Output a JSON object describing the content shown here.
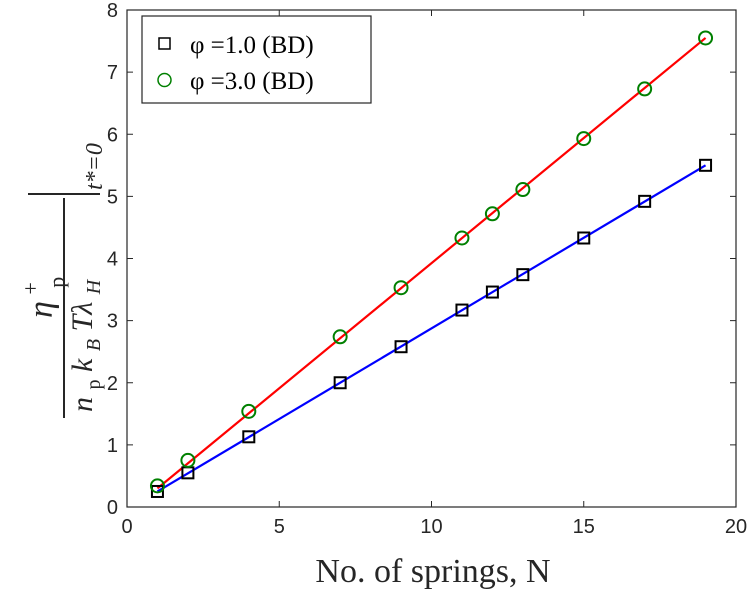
{
  "chart_data": {
    "type": "scatter",
    "xlabel": "No. of springs, N",
    "ylabel": {
      "numerator": "η",
      "numerator_sup": "+",
      "numerator_sub": "p",
      "denominator": "n",
      "denominator_sub": "p",
      "denominator_rest": "k",
      "denominator_rest_sub": "B",
      "denominator_tail": "Tλ",
      "denominator_tail_sub": "H",
      "evaluation": "t*=0"
    },
    "xlim": [
      0,
      20
    ],
    "ylim": [
      0,
      8
    ],
    "xticks": [
      0,
      5,
      10,
      15,
      20
    ],
    "yticks": [
      0,
      1,
      2,
      3,
      4,
      5,
      6,
      7,
      8
    ],
    "grid": false,
    "legend_position": "top-left",
    "series": [
      {
        "name": "φ =1.0 (BD)",
        "marker": "square",
        "color": "#000000",
        "line_color": "#0000ff",
        "x": [
          1,
          2,
          4,
          7,
          9,
          11,
          12,
          13,
          15,
          17,
          19
        ],
        "y": [
          0.25,
          0.55,
          1.13,
          2.0,
          2.58,
          3.17,
          3.46,
          3.74,
          4.33,
          4.92,
          5.5
        ],
        "fit": [
          [
            1,
            0.25
          ],
          [
            19,
            5.5
          ]
        ]
      },
      {
        "name": "φ =3.0 (BD)",
        "marker": "circle",
        "color": "#008000",
        "line_color": "#ff0000",
        "x": [
          1,
          2,
          4,
          7,
          9,
          11,
          12,
          13,
          15,
          17,
          19
        ],
        "y": [
          0.34,
          0.75,
          1.54,
          2.74,
          3.53,
          4.33,
          4.72,
          5.11,
          5.93,
          6.73,
          7.55
        ],
        "fit": [
          [
            1,
            0.3
          ],
          [
            19,
            7.55
          ]
        ]
      }
    ]
  }
}
